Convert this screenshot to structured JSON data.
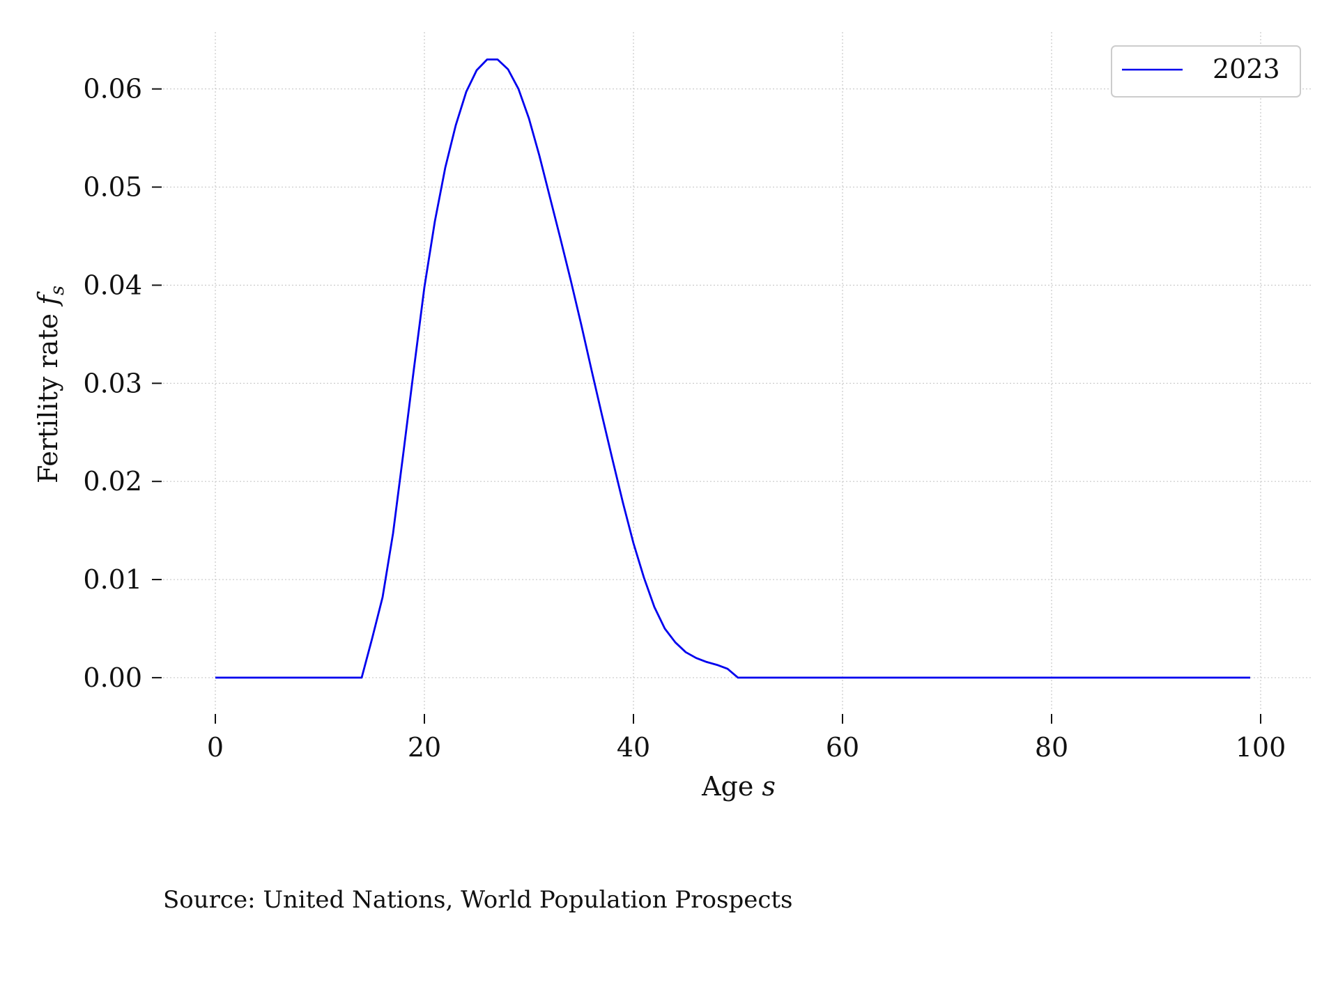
{
  "chart_data": {
    "type": "line",
    "xlabel": "Age",
    "xlabel_symbol": "s",
    "ylabel": "Fertility rate",
    "ylabel_symbol": "f",
    "ylabel_subscript": "s",
    "xlim": [
      -5,
      105
    ],
    "ylim": [
      -0.0032,
      0.0658
    ],
    "x_ticks": [
      0,
      20,
      40,
      60,
      80,
      100
    ],
    "x_tick_labels": [
      "0",
      "20",
      "40",
      "60",
      "80",
      "100"
    ],
    "y_ticks": [
      0,
      0.01,
      0.02,
      0.03,
      0.04,
      0.05,
      0.06
    ],
    "y_tick_labels": [
      "0.00",
      "0.01",
      "0.02",
      "0.03",
      "0.04",
      "0.05",
      "0.06"
    ],
    "grid": true,
    "legend_position": "top-right",
    "series": [
      {
        "name": "2023",
        "color": "#0000ee",
        "x": [
          0,
          1,
          2,
          3,
          4,
          5,
          6,
          7,
          8,
          9,
          10,
          11,
          12,
          13,
          14,
          15,
          16,
          17,
          18,
          19,
          20,
          21,
          22,
          23,
          24,
          25,
          26,
          27,
          28,
          29,
          30,
          31,
          32,
          33,
          34,
          35,
          36,
          37,
          38,
          39,
          40,
          41,
          42,
          43,
          44,
          45,
          46,
          47,
          48,
          49,
          50,
          51,
          52,
          53,
          54,
          55,
          56,
          57,
          58,
          59,
          60,
          61,
          62,
          63,
          64,
          65,
          66,
          67,
          68,
          69,
          70,
          71,
          72,
          73,
          74,
          75,
          76,
          77,
          78,
          79,
          80,
          81,
          82,
          83,
          84,
          85,
          86,
          87,
          88,
          89,
          90,
          91,
          92,
          93,
          94,
          95,
          96,
          97,
          98,
          99
        ],
        "y": [
          0,
          0,
          0,
          0,
          0,
          0,
          0,
          0,
          0,
          0,
          0,
          0,
          0,
          0,
          0,
          0.004,
          0.0082,
          0.0147,
          0.023,
          0.0315,
          0.0398,
          0.0465,
          0.052,
          0.0563,
          0.0597,
          0.0619,
          0.063,
          0.063,
          0.062,
          0.06,
          0.057,
          0.0532,
          0.049,
          0.0448,
          0.0405,
          0.036,
          0.0313,
          0.0267,
          0.0222,
          0.0178,
          0.0137,
          0.0102,
          0.0072,
          0.005,
          0.0036,
          0.0026,
          0.002,
          0.0016,
          0.0013,
          0.0009,
          0,
          0,
          0,
          0,
          0,
          0,
          0,
          0,
          0,
          0,
          0,
          0,
          0,
          0,
          0,
          0,
          0,
          0,
          0,
          0,
          0,
          0,
          0,
          0,
          0,
          0,
          0,
          0,
          0,
          0,
          0,
          0,
          0,
          0,
          0,
          0,
          0,
          0,
          0,
          0,
          0,
          0,
          0,
          0,
          0,
          0,
          0,
          0,
          0,
          0
        ]
      }
    ]
  },
  "source_note": "Source: United Nations, World Population Prospects"
}
